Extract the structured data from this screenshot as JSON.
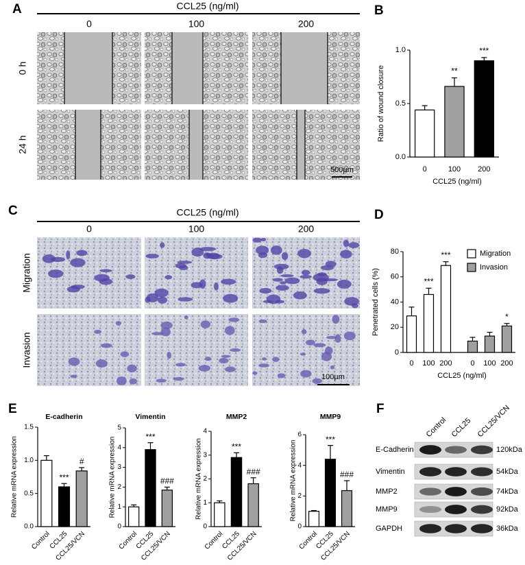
{
  "panel_labels": [
    "A",
    "B",
    "C",
    "D",
    "E",
    "F"
  ],
  "panel_a": {
    "title": "CCL25 (ng/ml)",
    "columns": [
      "0",
      "100",
      "200"
    ],
    "rows": [
      "0 h",
      "24 h"
    ],
    "scale_bar": "500µm"
  },
  "panel_c": {
    "title": "CCL25 (ng/ml)",
    "columns": [
      "0",
      "100",
      "200"
    ],
    "rows": [
      "Migration",
      "Invasion"
    ],
    "scale_bar": "100µm"
  },
  "panel_f": {
    "lanes": [
      "Control",
      "CCL25",
      "CCL25/VCN"
    ],
    "rows": [
      {
        "protein": "E-Cadherin",
        "size": "120kDa"
      },
      {
        "protein": "Vimentin",
        "size": "54kDa"
      },
      {
        "protein": "MMP2",
        "size": "74kDa"
      },
      {
        "protein": "MMP9",
        "size": "92kDa"
      },
      {
        "protein": "GAPDH",
        "size": "36kDa"
      }
    ]
  },
  "chart_data": [
    {
      "type": "bar",
      "ylabel": "Ratio of wound closure",
      "xlabel": "CCL25 (ng/ml)",
      "categories": [
        "0",
        "100",
        "200"
      ],
      "values": [
        0.44,
        0.66,
        0.9
      ],
      "errors": [
        0.04,
        0.08,
        0.03
      ],
      "annotations": [
        null,
        "**",
        "***"
      ],
      "colors": [
        "#ffffff",
        "#a0a0a0",
        "#000000"
      ],
      "ylim": [
        0,
        1
      ],
      "yticks": [
        {
          "value": 0,
          "label": "0.0"
        },
        0.5,
        {
          "value": 1,
          "label": "1.0"
        }
      ]
    },
    {
      "type": "bar",
      "ylabel": "Penetrated cells (%)",
      "xlabel": "CCL25 (ng/ml)",
      "categories": [
        "0",
        "100",
        "200"
      ],
      "series": [
        {
          "name": "Migration",
          "color": "#ffffff",
          "values": [
            29,
            46,
            69
          ],
          "errors": [
            7,
            5,
            3
          ],
          "annotations": [
            null,
            "***",
            "***"
          ]
        },
        {
          "name": "Invasion",
          "color": "#a0a0a0",
          "values": [
            9,
            13,
            21
          ],
          "errors": [
            3,
            3,
            2
          ],
          "annotations": [
            null,
            null,
            "*"
          ]
        }
      ],
      "legend": "upper right",
      "ylim": [
        0,
        80
      ],
      "yticks": [
        0,
        20,
        40,
        60,
        80
      ]
    },
    {
      "type": "bar",
      "title": "E-cadherin",
      "ylabel": "Relative mRNA expression",
      "categories": [
        "Control",
        "CCL25",
        "CCL25/VCN"
      ],
      "values": [
        1.0,
        0.6,
        0.84
      ],
      "errors": [
        0.07,
        0.05,
        0.05
      ],
      "annotations": [
        null,
        "***",
        "#"
      ],
      "colors": [
        "#ffffff",
        "#000000",
        "#a0a0a0"
      ],
      "ylim": [
        0,
        1.5
      ],
      "yticks": [
        {
          "value": 0,
          "label": "0.0"
        },
        0.5,
        {
          "value": 1,
          "label": "1.0"
        },
        1.5
      ]
    },
    {
      "type": "bar",
      "title": "Vimentin",
      "ylabel": "Relative mRNA expression",
      "categories": [
        "Control",
        "CCL25",
        "CCL25/VCN"
      ],
      "values": [
        1.0,
        3.9,
        1.85
      ],
      "errors": [
        0.1,
        0.35,
        0.15
      ],
      "annotations": [
        null,
        "***",
        "###"
      ],
      "colors": [
        "#ffffff",
        "#000000",
        "#a0a0a0"
      ],
      "ylim": [
        0,
        5
      ],
      "yticks": [
        0,
        1,
        2,
        3,
        4,
        5
      ]
    },
    {
      "type": "bar",
      "title": "MMP2",
      "ylabel": "Relative mRNA expression",
      "categories": [
        "Control",
        "CCL25",
        "CCL25/VCN"
      ],
      "values": [
        1.0,
        2.9,
        1.8
      ],
      "errors": [
        0.08,
        0.2,
        0.25
      ],
      "annotations": [
        null,
        "***",
        "###"
      ],
      "colors": [
        "#ffffff",
        "#000000",
        "#a0a0a0"
      ],
      "ylim": [
        0,
        4
      ],
      "yticks": [
        0,
        1,
        2,
        3,
        4
      ]
    },
    {
      "type": "bar",
      "title": "MMP9",
      "ylabel": "Relative mRNA expression",
      "categories": [
        "Control",
        "CCL25",
        "CCL25/VCN"
      ],
      "values": [
        1.0,
        4.4,
        2.35
      ],
      "errors": [
        0.05,
        0.9,
        0.65
      ],
      "annotations": [
        null,
        "***",
        "###"
      ],
      "colors": [
        "#ffffff",
        "#000000",
        "#a0a0a0"
      ],
      "ylim": [
        0,
        6
      ],
      "yticks": [
        0,
        2,
        4,
        6
      ]
    }
  ]
}
